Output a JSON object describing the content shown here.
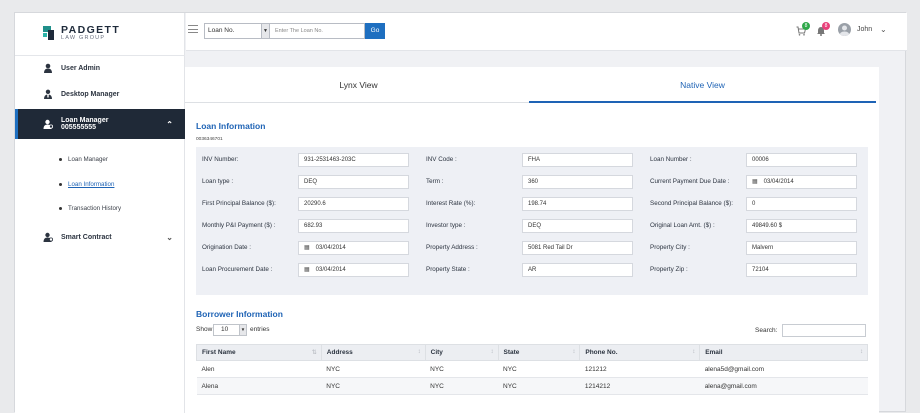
{
  "brand": {
    "name": "PADGETT",
    "sub": "LAW GROUP"
  },
  "sidebar": {
    "items": [
      {
        "label": "User Admin"
      },
      {
        "label": "Desktop Manager"
      },
      {
        "label": "Loan Manager",
        "sub": "005555555"
      },
      {
        "label": "Smart Contract"
      }
    ],
    "subitems": [
      {
        "label": "Loan Manager"
      },
      {
        "label": "Loan Information"
      },
      {
        "label": "Transaction History"
      }
    ]
  },
  "topbar": {
    "search_type": "Loan No.",
    "search_placeholder": "Enter The Loan No.",
    "go_label": "Go",
    "badge1": "8",
    "badge2": "8",
    "user_name": "John"
  },
  "tabs": [
    {
      "label": "Lynx View"
    },
    {
      "label": "Native View"
    }
  ],
  "loan_info": {
    "title": "Loan Information",
    "loan_id": "0036346701",
    "fields": [
      {
        "label": "INV Number:",
        "value": "931-2531463-203C"
      },
      {
        "label": "INV Code :",
        "value": "FHA"
      },
      {
        "label": "Loan Number :",
        "value": "00006"
      },
      {
        "label": "Loan type :",
        "value": "DEQ"
      },
      {
        "label": "Term :",
        "value": "360"
      },
      {
        "label": "Current Payment Due Date :",
        "value": "03/04/2014"
      },
      {
        "label": "First Principal Balance ($):",
        "value": "20290.6"
      },
      {
        "label": "Interest Rate (%):",
        "value": "198.74"
      },
      {
        "label": "Second Principal Balance ($):",
        "value": "0"
      },
      {
        "label": "Monthly P&I Payment ($) :",
        "value": "682.93"
      },
      {
        "label": "Investor type :",
        "value": "DEQ"
      },
      {
        "label": "Original Loan Amt. ($) :",
        "value": "49849.60 $"
      },
      {
        "label": "Origination Date :",
        "value": "03/04/2014"
      },
      {
        "label": "Property Address :",
        "value": "5081 Red Tail Dr"
      },
      {
        "label": "Property City :",
        "value": "Malvern"
      },
      {
        "label": "Loan Procurement Date :",
        "value": "03/04/2014"
      },
      {
        "label": "Property State :",
        "value": "AR"
      },
      {
        "label": "Property Zip :",
        "value": "72104"
      }
    ]
  },
  "borrower": {
    "title": "Borrower Information",
    "show_label": "Show",
    "page_size": "10",
    "entries_label": "entries",
    "search_label": "Search:",
    "columns": [
      "First Name",
      "Address",
      "City",
      "State",
      "Phone No.",
      "Email"
    ],
    "rows": [
      [
        "Alen",
        "NYC",
        "NYC",
        "NYC",
        "121212",
        "alena5d@gmail.com"
      ],
      [
        "Alena",
        "NYC",
        "NYC",
        "NYC",
        "1214212",
        "alena@gmail.com"
      ]
    ]
  },
  "colors": {
    "accent": "#1e63b5",
    "sidebar_active": "#1f2937",
    "go_button": "#1e6fc0"
  }
}
